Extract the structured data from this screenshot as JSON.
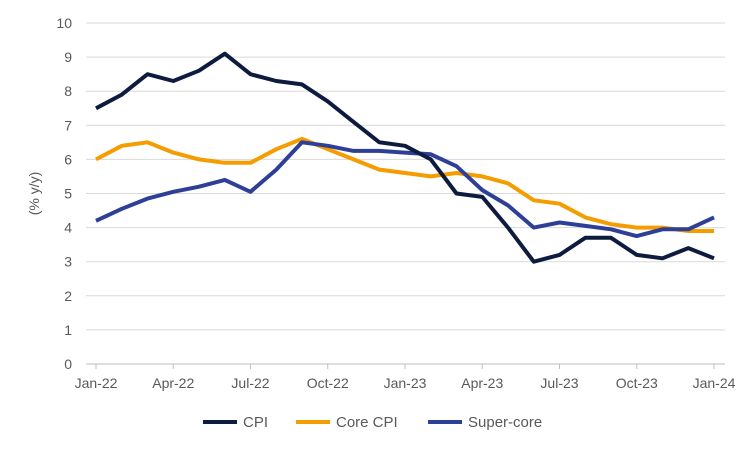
{
  "chart_data": {
    "type": "line",
    "title": "",
    "xlabel": "",
    "ylabel": "(% y/y)",
    "ylim": [
      0,
      10
    ],
    "yticks": [
      "0",
      "1",
      "2",
      "3",
      "4",
      "5",
      "6",
      "7",
      "8",
      "9",
      "10"
    ],
    "x": [
      "2022-01",
      "2022-02",
      "2022-03",
      "2022-04",
      "2022-05",
      "2022-06",
      "2022-07",
      "2022-08",
      "2022-09",
      "2022-10",
      "2022-11",
      "2022-12",
      "2023-01",
      "2023-02",
      "2023-03",
      "2023-04",
      "2023-05",
      "2023-06",
      "2023-07",
      "2023-08",
      "2023-09",
      "2023-10",
      "2023-11",
      "2023-12",
      "2024-01"
    ],
    "xtick_labels": [
      {
        "label": "Jan-22",
        "at": "2022-01"
      },
      {
        "label": "Apr-22",
        "at": "2022-04"
      },
      {
        "label": "Jul-22",
        "at": "2022-07"
      },
      {
        "label": "Oct-22",
        "at": "2022-10"
      },
      {
        "label": "Jan-23",
        "at": "2023-01"
      },
      {
        "label": "Apr-23",
        "at": "2023-04"
      },
      {
        "label": "Jul-23",
        "at": "2023-07"
      },
      {
        "label": "Oct-23",
        "at": "2023-10"
      },
      {
        "label": "Jan-24",
        "at": "2024-01"
      }
    ],
    "grid": "horizontal",
    "legend_position": "bottom",
    "series": [
      {
        "name": "CPI",
        "color": "#0d1b3e",
        "values": [
          7.5,
          7.9,
          8.5,
          8.3,
          8.6,
          9.1,
          8.5,
          8.3,
          8.2,
          7.7,
          7.1,
          6.5,
          6.4,
          6.0,
          5.0,
          4.9,
          4.0,
          3.0,
          3.2,
          3.7,
          3.7,
          3.2,
          3.1,
          3.4,
          3.1
        ]
      },
      {
        "name": "Core CPI",
        "color": "#f59c00",
        "values": [
          6.0,
          6.4,
          6.5,
          6.2,
          6.0,
          5.9,
          5.9,
          6.3,
          6.6,
          6.3,
          6.0,
          5.7,
          5.6,
          5.5,
          5.6,
          5.5,
          5.3,
          4.8,
          4.7,
          4.3,
          4.1,
          4.0,
          4.0,
          3.9,
          3.9
        ]
      },
      {
        "name": "Super-core",
        "color": "#2e3f98",
        "values": [
          4.2,
          4.55,
          4.85,
          5.05,
          5.2,
          5.4,
          5.05,
          5.7,
          6.5,
          6.4,
          6.25,
          6.25,
          6.2,
          6.15,
          5.8,
          5.1,
          4.65,
          4.0,
          4.15,
          4.05,
          3.95,
          3.75,
          3.95,
          3.95,
          4.3
        ]
      }
    ]
  }
}
